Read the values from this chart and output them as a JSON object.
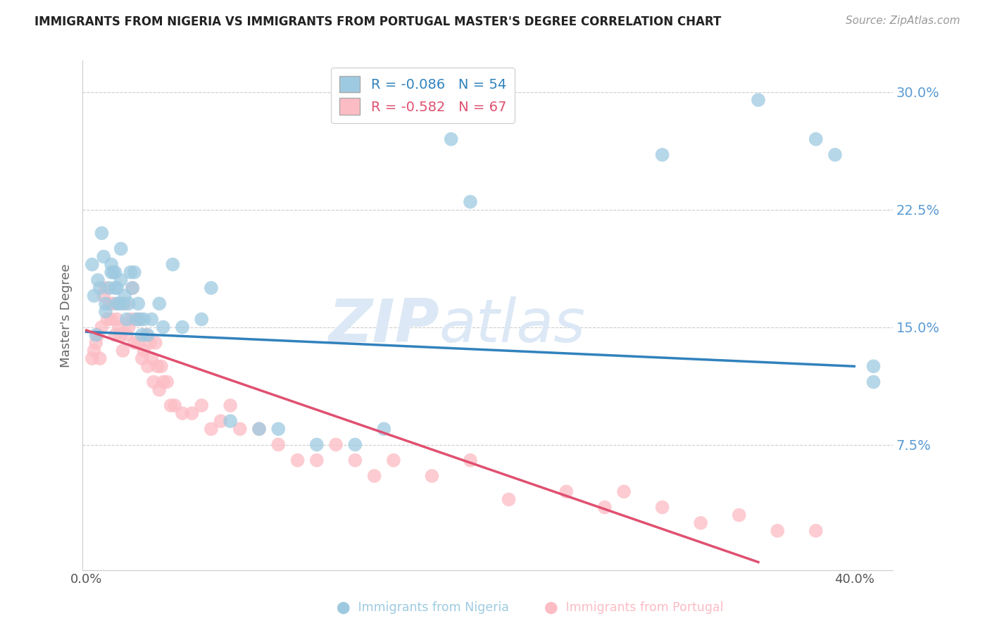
{
  "title": "IMMIGRANTS FROM NIGERIA VS IMMIGRANTS FROM PORTUGAL MASTER'S DEGREE CORRELATION CHART",
  "source": "Source: ZipAtlas.com",
  "ylabel": "Master's Degree",
  "y_ticks": [
    0.075,
    0.15,
    0.225,
    0.3
  ],
  "y_tick_labels": [
    "7.5%",
    "15.0%",
    "22.5%",
    "30.0%"
  ],
  "ylim": [
    -0.005,
    0.32
  ],
  "xlim": [
    -0.002,
    0.42
  ],
  "nigeria_R": -0.086,
  "nigeria_N": 54,
  "portugal_R": -0.582,
  "portugal_N": 67,
  "nigeria_color": "#9ecae1",
  "portugal_color": "#fcbcc4",
  "nigeria_line_color": "#3182bd",
  "portugal_line_color": "#e05070",
  "watermark_zip": "ZIP",
  "watermark_atlas": "atlas",
  "watermark_color": "#dce8f5",
  "nigeria_line_x0": 0.0,
  "nigeria_line_y0": 0.147,
  "nigeria_line_x1": 0.4,
  "nigeria_line_y1": 0.125,
  "portugal_line_x0": 0.0,
  "portugal_line_y0": 0.148,
  "portugal_line_x1": 0.35,
  "portugal_line_y1": 0.0,
  "nigeria_scatter_x": [
    0.003,
    0.004,
    0.005,
    0.006,
    0.007,
    0.008,
    0.009,
    0.01,
    0.01,
    0.012,
    0.013,
    0.013,
    0.014,
    0.015,
    0.015,
    0.016,
    0.016,
    0.017,
    0.018,
    0.018,
    0.019,
    0.02,
    0.021,
    0.022,
    0.023,
    0.024,
    0.025,
    0.026,
    0.027,
    0.028,
    0.029,
    0.03,
    0.032,
    0.034,
    0.038,
    0.04,
    0.045,
    0.05,
    0.06,
    0.065,
    0.075,
    0.09,
    0.1,
    0.12,
    0.14,
    0.155,
    0.19,
    0.2,
    0.3,
    0.35,
    0.38,
    0.39,
    0.41,
    0.41
  ],
  "nigeria_scatter_y": [
    0.19,
    0.17,
    0.145,
    0.18,
    0.175,
    0.21,
    0.195,
    0.16,
    0.165,
    0.175,
    0.185,
    0.19,
    0.185,
    0.175,
    0.185,
    0.165,
    0.175,
    0.165,
    0.18,
    0.2,
    0.165,
    0.17,
    0.155,
    0.165,
    0.185,
    0.175,
    0.185,
    0.155,
    0.165,
    0.155,
    0.145,
    0.155,
    0.145,
    0.155,
    0.165,
    0.15,
    0.19,
    0.15,
    0.155,
    0.175,
    0.09,
    0.085,
    0.085,
    0.075,
    0.075,
    0.085,
    0.27,
    0.23,
    0.26,
    0.295,
    0.27,
    0.26,
    0.115,
    0.125
  ],
  "portugal_scatter_x": [
    0.003,
    0.004,
    0.005,
    0.006,
    0.007,
    0.008,
    0.009,
    0.01,
    0.011,
    0.012,
    0.013,
    0.014,
    0.015,
    0.016,
    0.017,
    0.018,
    0.019,
    0.02,
    0.021,
    0.022,
    0.023,
    0.024,
    0.025,
    0.026,
    0.027,
    0.028,
    0.029,
    0.03,
    0.031,
    0.032,
    0.033,
    0.034,
    0.035,
    0.036,
    0.037,
    0.038,
    0.039,
    0.04,
    0.042,
    0.044,
    0.046,
    0.05,
    0.055,
    0.06,
    0.065,
    0.07,
    0.075,
    0.08,
    0.09,
    0.1,
    0.11,
    0.12,
    0.13,
    0.14,
    0.15,
    0.16,
    0.18,
    0.2,
    0.22,
    0.25,
    0.27,
    0.28,
    0.3,
    0.32,
    0.34,
    0.36,
    0.38
  ],
  "portugal_scatter_y": [
    0.13,
    0.135,
    0.14,
    0.145,
    0.13,
    0.15,
    0.17,
    0.175,
    0.155,
    0.165,
    0.155,
    0.165,
    0.145,
    0.155,
    0.15,
    0.145,
    0.135,
    0.165,
    0.145,
    0.15,
    0.155,
    0.175,
    0.14,
    0.155,
    0.14,
    0.155,
    0.13,
    0.135,
    0.145,
    0.125,
    0.14,
    0.13,
    0.115,
    0.14,
    0.125,
    0.11,
    0.125,
    0.115,
    0.115,
    0.1,
    0.1,
    0.095,
    0.095,
    0.1,
    0.085,
    0.09,
    0.1,
    0.085,
    0.085,
    0.075,
    0.065,
    0.065,
    0.075,
    0.065,
    0.055,
    0.065,
    0.055,
    0.065,
    0.04,
    0.045,
    0.035,
    0.045,
    0.035,
    0.025,
    0.03,
    0.02,
    0.02
  ]
}
